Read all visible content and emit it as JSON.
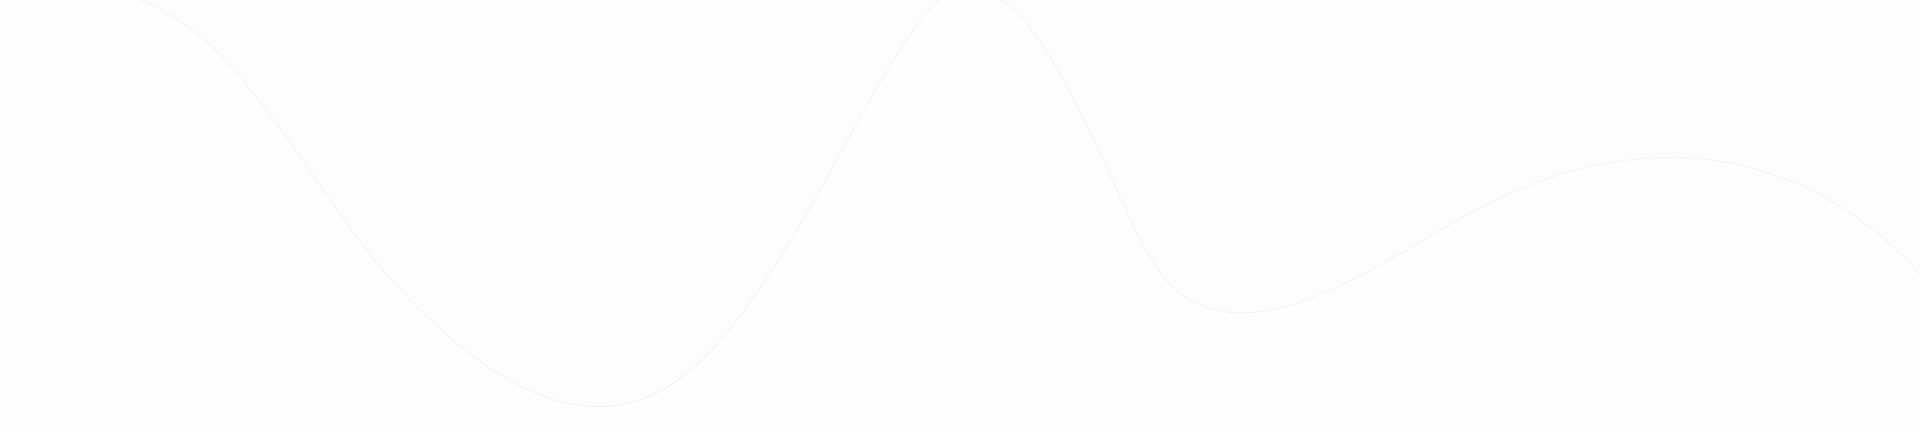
{
  "decoration": {
    "type": "wave-background",
    "colors": {
      "background": "#ffffff",
      "fill": "#fdfdfd",
      "stroke": "#ececec"
    }
  }
}
